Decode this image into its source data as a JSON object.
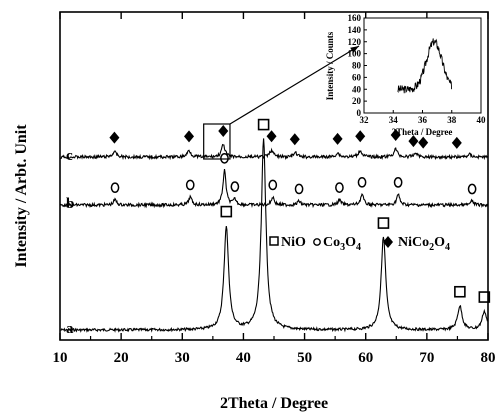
{
  "chart_data": {
    "type": "line",
    "xlabel": "2Theta / Degree",
    "ylabel": "Intensity / Arbt. Unit",
    "xlim": [
      10,
      80
    ],
    "xticks": [
      10,
      20,
      30,
      40,
      50,
      60,
      70,
      80
    ],
    "y_tick_labels_shown": false,
    "series": [
      {
        "name": "a",
        "marker": "square",
        "peaks": [
          {
            "x": 37.2,
            "height": 0.39
          },
          {
            "x": 43.3,
            "height": 0.72
          },
          {
            "x": 62.9,
            "height": 0.35
          },
          {
            "x": 75.4,
            "height": 0.09
          },
          {
            "x": 79.4,
            "height": 0.07
          }
        ],
        "marker_x": [
          37.2,
          43.3,
          62.9,
          75.4,
          79.4
        ]
      },
      {
        "name": "b",
        "marker": "circle",
        "peaks": [
          {
            "x": 19.0,
            "height": 0.02
          },
          {
            "x": 31.3,
            "height": 0.03
          },
          {
            "x": 36.9,
            "height": 0.13
          },
          {
            "x": 38.6,
            "height": 0.02
          },
          {
            "x": 44.8,
            "height": 0.03
          },
          {
            "x": 49.1,
            "height": 0.015
          },
          {
            "x": 55.7,
            "height": 0.02
          },
          {
            "x": 59.4,
            "height": 0.04
          },
          {
            "x": 65.3,
            "height": 0.04
          },
          {
            "x": 77.4,
            "height": 0.015
          }
        ],
        "marker_x": [
          19.0,
          31.3,
          36.9,
          38.6,
          44.8,
          49.1,
          55.7,
          59.4,
          65.3,
          77.4
        ]
      },
      {
        "name": "c",
        "marker": "diamond",
        "peaks": [
          {
            "x": 18.9,
            "height": 0.02
          },
          {
            "x": 31.1,
            "height": 0.025
          },
          {
            "x": 36.7,
            "height": 0.045
          },
          {
            "x": 44.6,
            "height": 0.025
          },
          {
            "x": 48.5,
            "height": 0.015
          },
          {
            "x": 55.4,
            "height": 0.015
          },
          {
            "x": 59.1,
            "height": 0.025
          },
          {
            "x": 64.9,
            "height": 0.03
          },
          {
            "x": 68.2,
            "height": 0.015
          },
          {
            "x": 77.0,
            "height": 0.01
          }
        ],
        "marker_x": [
          18.9,
          31.1,
          36.7,
          44.6,
          48.4,
          55.4,
          59.1,
          64.9,
          67.8,
          69.4,
          74.9
        ]
      }
    ],
    "legend": {
      "placement": "middle-right",
      "entries": [
        {
          "marker": "square",
          "label": "NiO"
        },
        {
          "marker": "circle",
          "label": "Co3O4",
          "label_main": "Co",
          "sub1": "3",
          "mid": "O",
          "sub2": "4"
        },
        {
          "marker": "diamond",
          "label": "NiCo2O4",
          "label_main": "NiCo",
          "sub1": "2",
          "mid": "O",
          "sub2": "4"
        }
      ]
    },
    "zoom_box_x": [
      33.5,
      37.8
    ],
    "inset": {
      "xlabel": "2Theta / Degree",
      "ylabel": "Intensity / Counts",
      "xlim": [
        32,
        40
      ],
      "ylim": [
        0,
        160
      ],
      "xticks": [
        32,
        34,
        36,
        38,
        40
      ],
      "yticks": [
        0,
        20,
        40,
        60,
        80,
        100,
        120,
        140,
        160
      ],
      "peak": {
        "center": 36.8,
        "height": 120,
        "baseline": 40,
        "x_start": 34.3,
        "x_end": 38.0
      }
    }
  }
}
